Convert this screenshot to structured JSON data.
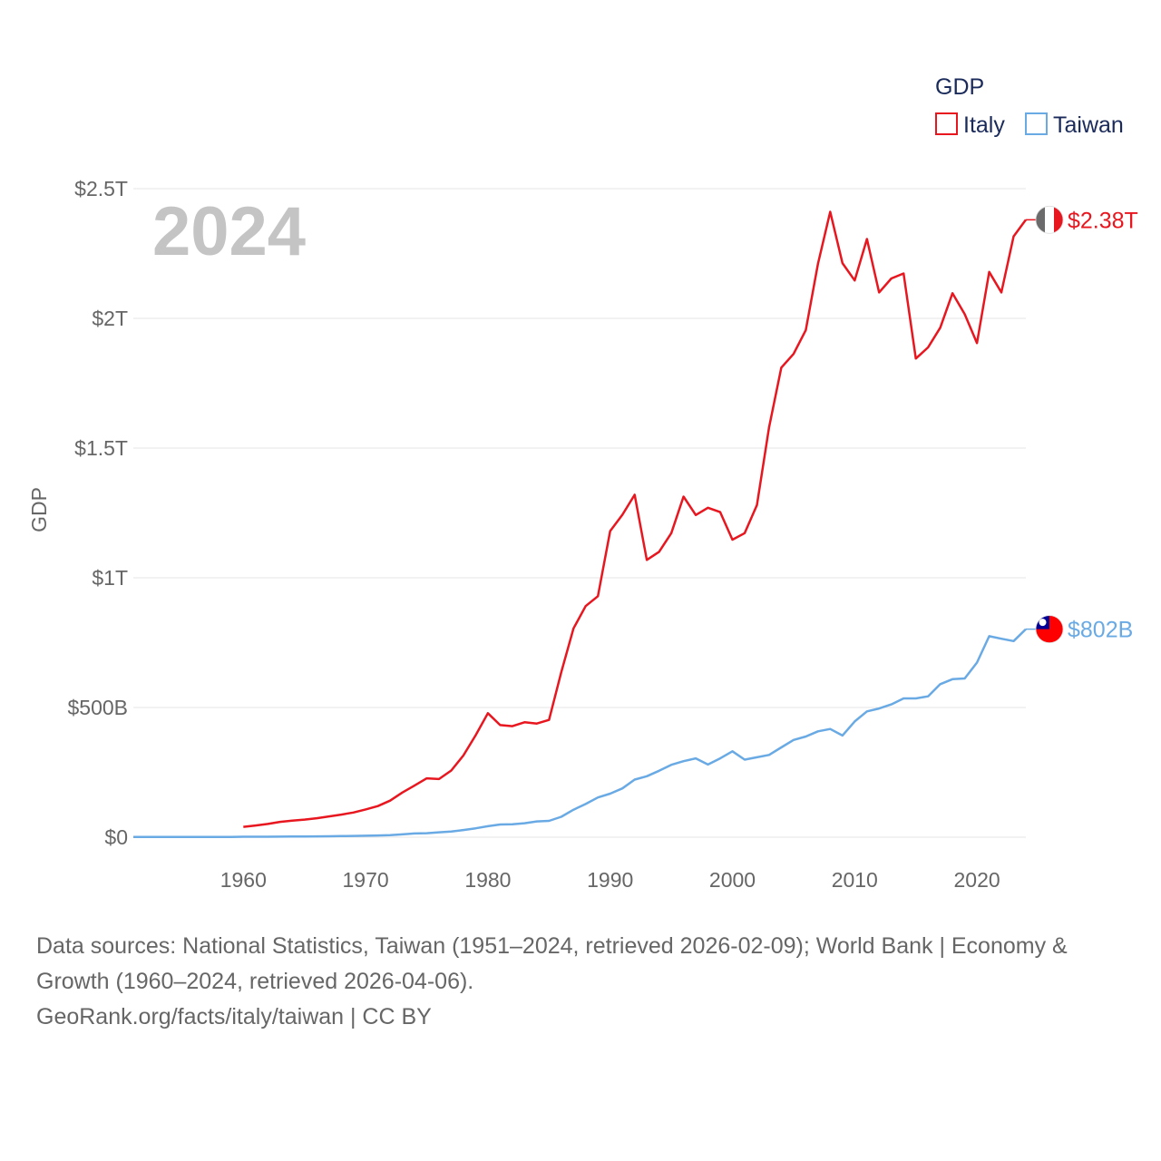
{
  "chart_data": {
    "type": "line",
    "title": "GDP",
    "ylabel": "GDP",
    "xlabel": "",
    "year_label": "2024",
    "xlim": [
      1951,
      2024
    ],
    "ylim": [
      0,
      2.5
    ],
    "y_unit": "trillion USD",
    "y_ticks": [
      {
        "value": 0,
        "label": "$0"
      },
      {
        "value": 0.5,
        "label": "$500B"
      },
      {
        "value": 1,
        "label": "$1T"
      },
      {
        "value": 1.5,
        "label": "$1.5T"
      },
      {
        "value": 2,
        "label": "$2T"
      },
      {
        "value": 2.5,
        "label": "$2.5T"
      }
    ],
    "x_ticks": [
      1960,
      1970,
      1980,
      1990,
      2000,
      2010,
      2020
    ],
    "legend": {
      "title": "GDP",
      "position": "top-right"
    },
    "series": [
      {
        "name": "Italy",
        "color": "#e8161f",
        "end_label": "$2.38T",
        "flag": "italy-flag",
        "x": [
          1960,
          1961,
          1962,
          1963,
          1964,
          1965,
          1966,
          1967,
          1968,
          1969,
          1970,
          1971,
          1972,
          1973,
          1974,
          1975,
          1976,
          1977,
          1978,
          1979,
          1980,
          1981,
          1982,
          1983,
          1984,
          1985,
          1986,
          1987,
          1988,
          1989,
          1990,
          1991,
          1992,
          1993,
          1994,
          1995,
          1996,
          1997,
          1998,
          1999,
          2000,
          2001,
          2002,
          2003,
          2004,
          2005,
          2006,
          2007,
          2008,
          2009,
          2010,
          2011,
          2012,
          2013,
          2014,
          2015,
          2016,
          2017,
          2018,
          2019,
          2020,
          2021,
          2022,
          2023,
          2024
        ],
        "values": [
          0.04,
          0.045,
          0.051,
          0.059,
          0.064,
          0.068,
          0.073,
          0.08,
          0.087,
          0.095,
          0.107,
          0.12,
          0.141,
          0.172,
          0.199,
          0.227,
          0.224,
          0.257,
          0.315,
          0.393,
          0.478,
          0.432,
          0.428,
          0.443,
          0.438,
          0.452,
          0.636,
          0.805,
          0.891,
          0.929,
          1.18,
          1.243,
          1.32,
          1.069,
          1.1,
          1.172,
          1.313,
          1.242,
          1.27,
          1.253,
          1.147,
          1.172,
          1.28,
          1.58,
          1.81,
          1.863,
          1.955,
          2.21,
          2.411,
          2.213,
          2.146,
          2.306,
          2.1,
          2.154,
          2.173,
          1.845,
          1.888,
          1.964,
          2.097,
          2.016,
          1.905,
          2.179,
          2.1,
          2.316,
          2.38
        ]
      },
      {
        "name": "Taiwan",
        "color": "#6aaae4",
        "end_label": "$802B",
        "flag": "taiwan-flag",
        "x": [
          1951,
          1952,
          1953,
          1954,
          1955,
          1956,
          1957,
          1958,
          1959,
          1960,
          1961,
          1962,
          1963,
          1964,
          1965,
          1966,
          1967,
          1968,
          1969,
          1970,
          1971,
          1972,
          1973,
          1974,
          1975,
          1976,
          1977,
          1978,
          1979,
          1980,
          1981,
          1982,
          1983,
          1984,
          1985,
          1986,
          1987,
          1988,
          1989,
          1990,
          1991,
          1992,
          1993,
          1994,
          1995,
          1996,
          1997,
          1998,
          1999,
          2000,
          2001,
          2002,
          2003,
          2004,
          2005,
          2006,
          2007,
          2008,
          2009,
          2010,
          2011,
          2012,
          2013,
          2014,
          2015,
          2016,
          2017,
          2018,
          2019,
          2020,
          2021,
          2022,
          2023,
          2024
        ],
        "values": [
          0.001,
          0.001,
          0.001,
          0.001,
          0.001,
          0.001,
          0.001,
          0.001,
          0.001,
          0.0017,
          0.0018,
          0.0019,
          0.0022,
          0.0025,
          0.0028,
          0.0032,
          0.0036,
          0.0043,
          0.005,
          0.0057,
          0.0067,
          0.008,
          0.0107,
          0.0144,
          0.0155,
          0.0188,
          0.0222,
          0.0277,
          0.0343,
          0.0422,
          0.0489,
          0.0496,
          0.0539,
          0.0607,
          0.0631,
          0.0786,
          0.106,
          0.128,
          0.153,
          0.168,
          0.188,
          0.222,
          0.235,
          0.256,
          0.279,
          0.293,
          0.304,
          0.28,
          0.304,
          0.331,
          0.299,
          0.308,
          0.317,
          0.346,
          0.375,
          0.388,
          0.408,
          0.417,
          0.392,
          0.446,
          0.485,
          0.496,
          0.512,
          0.535,
          0.535,
          0.543,
          0.59,
          0.609,
          0.612,
          0.673,
          0.775,
          0.765,
          0.756,
          0.802
        ]
      }
    ],
    "source_lines": [
      "Data sources: National Statistics, Taiwan (1951–2024, retrieved 2026-02-09); World Bank | Economy &",
      "Growth (1960–2024, retrieved 2026-04-06).",
      "GeoRank.org/facts/italy/taiwan | CC BY"
    ]
  }
}
